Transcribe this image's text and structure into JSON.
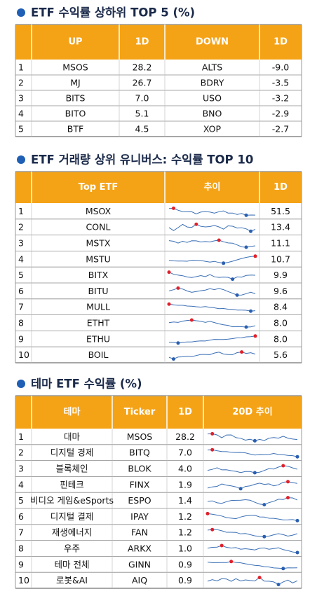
{
  "sections": [
    {
      "title": "ETF 수익률 상하위 TOP 5 (%)",
      "headers": [
        "UP",
        "1D",
        "DOWN",
        "1D"
      ],
      "rows": [
        [
          "1",
          "MSOS",
          "28.2",
          "ALTS",
          "-9.0"
        ],
        [
          "2",
          "MJ",
          "26.7",
          "BDRY",
          "-3.5"
        ],
        [
          "3",
          "BITS",
          "7.0",
          "USO",
          "-3.2"
        ],
        [
          "4",
          "BITO",
          "5.1",
          "BNO",
          "-2.9"
        ],
        [
          "5",
          "BTF",
          "4.5",
          "XOP",
          "-2.7"
        ]
      ]
    },
    {
      "title": "ETF 거래량 상위 유니버스: 수익률 TOP 10",
      "headers": [
        "Top ETF",
        "추이",
        "1D"
      ],
      "rows": [
        [
          "1",
          "MSOX",
          "51.5"
        ],
        [
          "2",
          "CONL",
          "13.4"
        ],
        [
          "3",
          "MSTX",
          "11.1"
        ],
        [
          "4",
          "MSTU",
          "10.7"
        ],
        [
          "5",
          "BITX",
          "9.9"
        ],
        [
          "6",
          "BITU",
          "9.6"
        ],
        [
          "7",
          "MULL",
          "8.4"
        ],
        [
          "8",
          "ETHT",
          "8.0"
        ],
        [
          "9",
          "ETHU",
          "8.0"
        ],
        [
          "10",
          "BOIL",
          "5.6"
        ]
      ]
    },
    {
      "title": "테마 ETF 수익률 (%)",
      "headers": [
        "테마",
        "Ticker",
        "1D",
        "20D 추이"
      ],
      "rows": [
        [
          "1",
          "대마",
          "MSOS",
          "28.2"
        ],
        [
          "2",
          "디지털 경제",
          "BITQ",
          "7.0"
        ],
        [
          "3",
          "블록체인",
          "BLOK",
          "4.0"
        ],
        [
          "4",
          "핀테크",
          "FINX",
          "1.9"
        ],
        [
          "5",
          "비디오 게임&eSports",
          "ESPO",
          "1.4"
        ],
        [
          "6",
          "디지털 결제",
          "IPAY",
          "1.2"
        ],
        [
          "7",
          "재생에너지",
          "FAN",
          "1.2"
        ],
        [
          "8",
          "우주",
          "ARKX",
          "1.0"
        ],
        [
          "9",
          "테마 전체",
          "GINN",
          "0.9"
        ],
        [
          "10",
          "로봇&AI",
          "AIQ",
          "0.9"
        ]
      ]
    }
  ]
}
